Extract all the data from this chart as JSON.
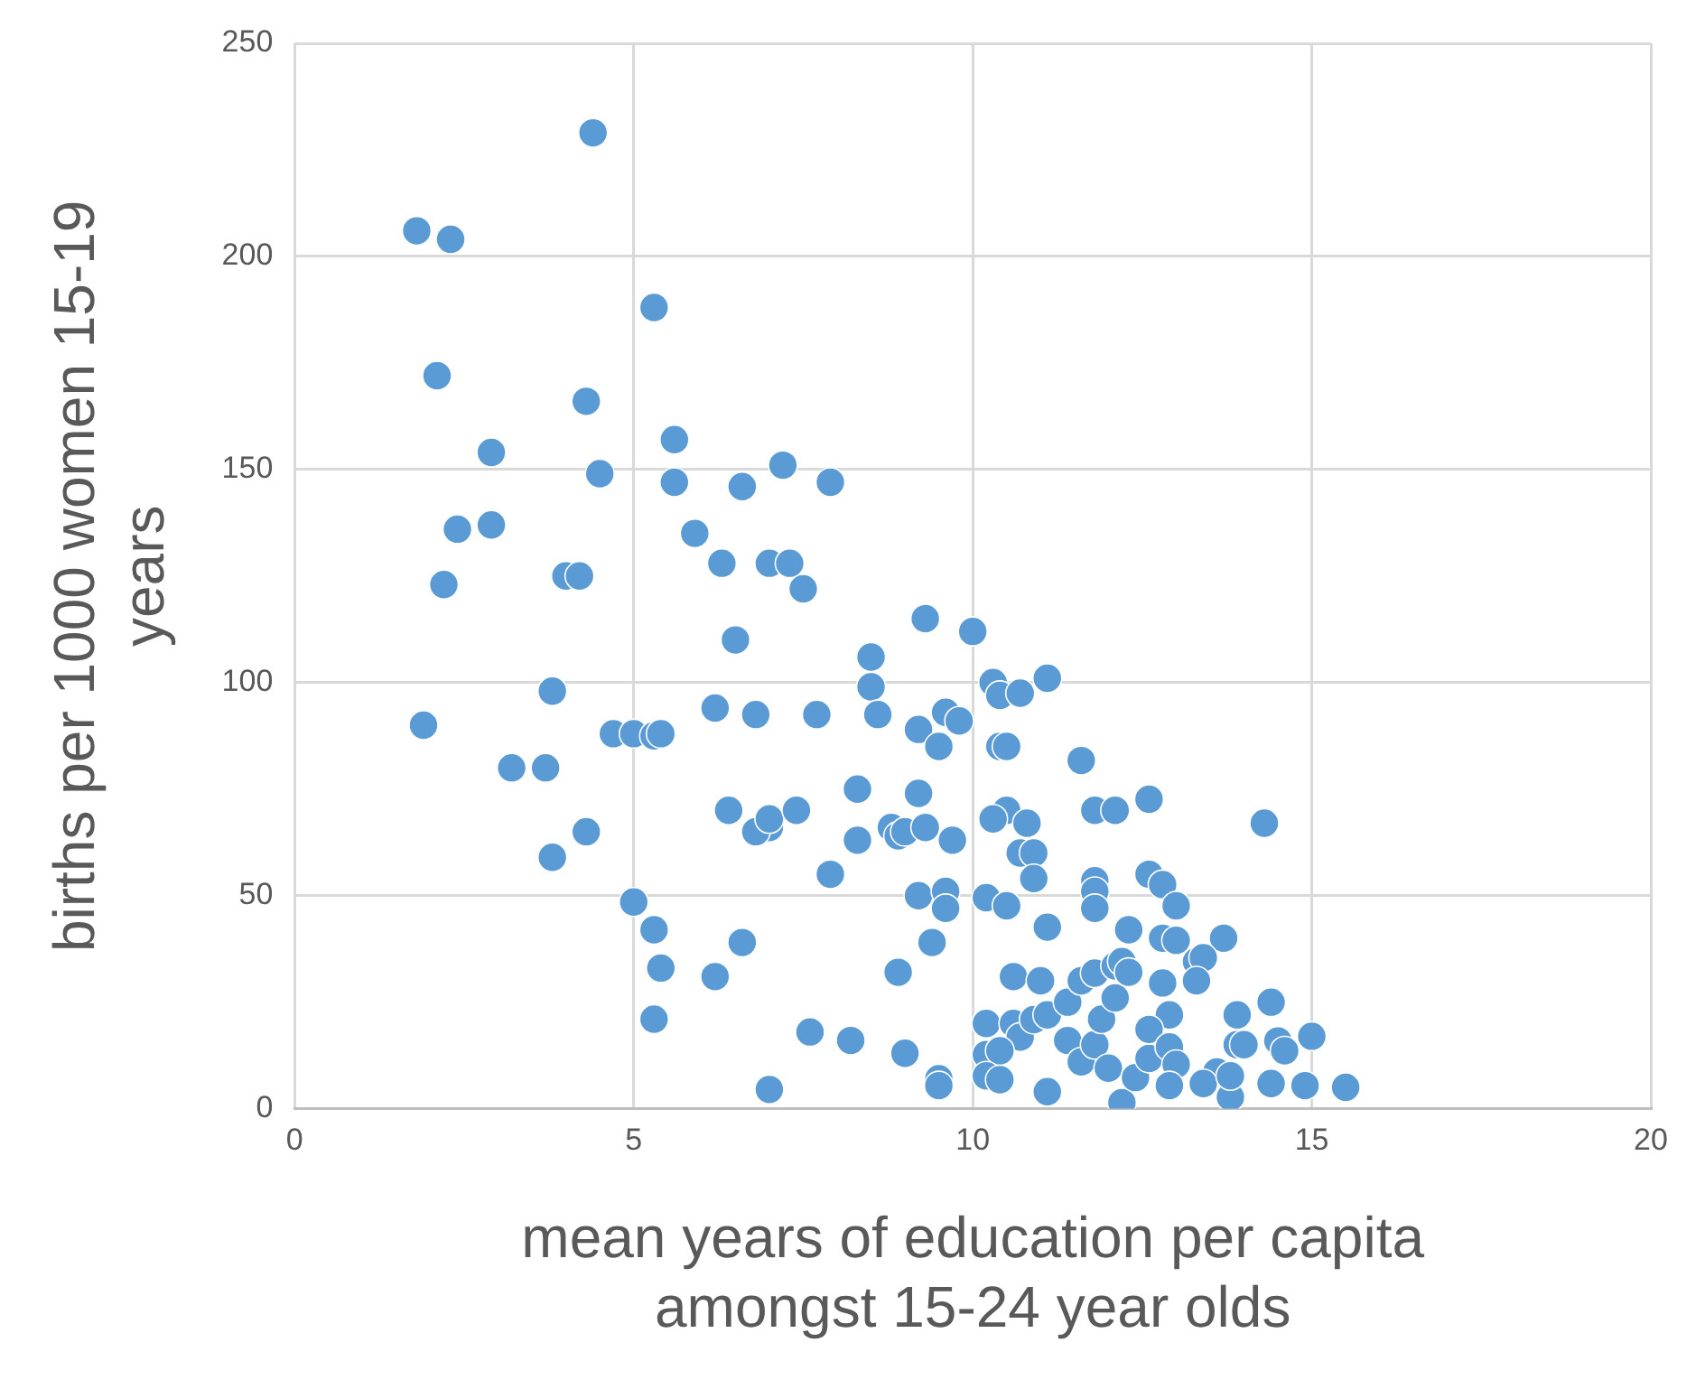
{
  "chart_data": {
    "type": "scatter",
    "xlabel": "mean years of education per capita amongst 15-24 year olds",
    "ylabel": "births per 1000 women 15-19 years",
    "xlim": [
      0,
      20
    ],
    "xticks": [
      0,
      5,
      10,
      15,
      20
    ],
    "ylim": [
      0,
      250
    ],
    "yticks": [
      0,
      50,
      100,
      150,
      200,
      250
    ],
    "grid": true,
    "legend": false,
    "marker": "circle",
    "series": [
      {
        "color": "#5b9bd5",
        "x": [
          1.8,
          2.3,
          4.4,
          2.1,
          5.3,
          4.3,
          2.9,
          5.6,
          4.5,
          5.6,
          2.4,
          2.9,
          5.9,
          6.6,
          7.2,
          7.9,
          2.2,
          4.0,
          4.2,
          6.3,
          7.0,
          7.3,
          7.5,
          6.5,
          1.9,
          3.8,
          4.7,
          5.0,
          5.3,
          5.4,
          6.2,
          6.8,
          7.7,
          3.2,
          3.7,
          3.8,
          4.3,
          6.4,
          7.0,
          6.8,
          7.0,
          7.4,
          7.9,
          5.0,
          5.3,
          5.4,
          5.3,
          6.2,
          6.6,
          7.0,
          7.6,
          8.2,
          9.0,
          8.9,
          9.5,
          9.5,
          9.4,
          8.5,
          8.5,
          8.6,
          9.3,
          10.0,
          8.3,
          8.3,
          8.8,
          8.9,
          9.0,
          9.2,
          9.2,
          9.2,
          9.3,
          9.5,
          9.6,
          9.8,
          9.6,
          9.6,
          9.7,
          10.3,
          10.4,
          10.7,
          11.1,
          10.4,
          10.5,
          10.5,
          10.3,
          10.7,
          10.9,
          10.8,
          10.9,
          10.2,
          10.5,
          11.1,
          11.6,
          11.8,
          12.1,
          12.6,
          14.3,
          11.8,
          11.8,
          11.8,
          12.6,
          12.8,
          13.0,
          13.7,
          12.8,
          13.0,
          12.3,
          10.6,
          11.0,
          10.2,
          10.6,
          10.7,
          10.9,
          10.2,
          10.4,
          10.2,
          10.4,
          11.1,
          11.1,
          11.4,
          11.6,
          11.8,
          12.1,
          11.4,
          11.6,
          11.8,
          11.9,
          12.1,
          12.2,
          12.3,
          12.8,
          12.9,
          12.0,
          12.2,
          12.4,
          12.6,
          12.6,
          12.9,
          13.0,
          12.9,
          13.3,
          13.4,
          13.3,
          13.6,
          13.4,
          13.8,
          13.8,
          13.9,
          13.9,
          14.0,
          14.4,
          14.5,
          14.6,
          14.4,
          14.9,
          15.0,
          15.5
        ],
        "values": [
          206,
          204,
          229,
          172,
          188,
          166,
          154,
          157,
          149,
          147,
          136,
          137,
          135,
          146,
          151,
          147,
          123,
          125,
          125,
          128,
          128,
          128,
          122,
          110,
          90,
          98,
          88,
          88,
          87.5,
          88,
          94,
          92.5,
          92.5,
          80,
          80,
          59,
          65,
          70,
          66,
          65,
          68,
          70,
          55,
          48.5,
          42,
          33,
          21,
          31,
          39,
          4.5,
          18,
          16,
          13,
          32,
          7,
          5.4,
          39,
          106,
          99,
          92.5,
          115,
          112,
          75,
          63,
          66,
          64,
          65,
          89,
          74,
          50,
          66,
          85,
          93,
          91,
          51,
          47,
          63,
          100,
          97,
          97.5,
          101,
          85,
          85,
          70,
          68,
          60,
          60,
          67,
          54,
          49.5,
          47.6,
          42.6,
          81.7,
          70,
          70,
          72.6,
          67,
          53.5,
          51,
          47,
          55,
          52.6,
          47.6,
          40,
          40,
          39.5,
          42,
          31,
          30,
          20,
          20,
          16.8,
          20.9,
          12.7,
          13.6,
          7.7,
          6.8,
          4,
          22,
          25,
          30,
          31.8,
          33.5,
          16,
          11,
          15,
          21,
          26,
          34.5,
          32,
          29.5,
          22,
          9.5,
          1.4,
          7.3,
          11.8,
          18.6,
          14.5,
          10.4,
          5.4,
          34.5,
          35.4,
          30,
          8.6,
          5.9,
          2.7,
          7.7,
          22,
          15,
          15,
          25,
          15.9,
          13.6,
          5.9,
          5.4,
          17,
          5
        ]
      }
    ]
  }
}
